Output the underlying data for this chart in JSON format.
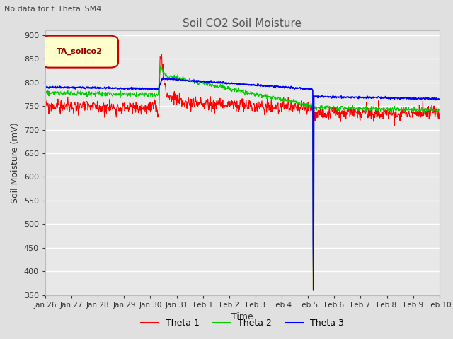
{
  "title": "Soil CO2 Soil Moisture",
  "subtitle": "No data for f_Theta_SM4",
  "ylabel": "Soil Moisture (mV)",
  "xlabel": "Time",
  "ylim": [
    350,
    910
  ],
  "yticks": [
    350,
    400,
    450,
    500,
    550,
    600,
    650,
    700,
    750,
    800,
    850,
    900
  ],
  "legend_box_label": "TA_soilco2",
  "fig_bg_color": "#e0e0e0",
  "plot_bg_color": "#e8e8e8",
  "colors": [
    "#ff0000",
    "#00cc00",
    "#0000ff"
  ],
  "tick_labels": [
    "Jan 26",
    "Jan 27",
    "Jan 28",
    "Jan 29",
    "Jan 30",
    "Jan 31",
    "Feb 1",
    "Feb 2",
    "Feb 3",
    "Feb 4",
    "Feb 5",
    "Feb 6",
    "Feb 7",
    "Feb 8",
    "Feb 9",
    "Feb 10"
  ],
  "figsize": [
    6.4,
    4.8
  ],
  "dpi": 100,
  "title_fontsize": 11,
  "subtitle_fontsize": 8,
  "ylabel_fontsize": 9,
  "xlabel_fontsize": 9,
  "tick_fontsize": 8,
  "legend_fontsize": 9
}
